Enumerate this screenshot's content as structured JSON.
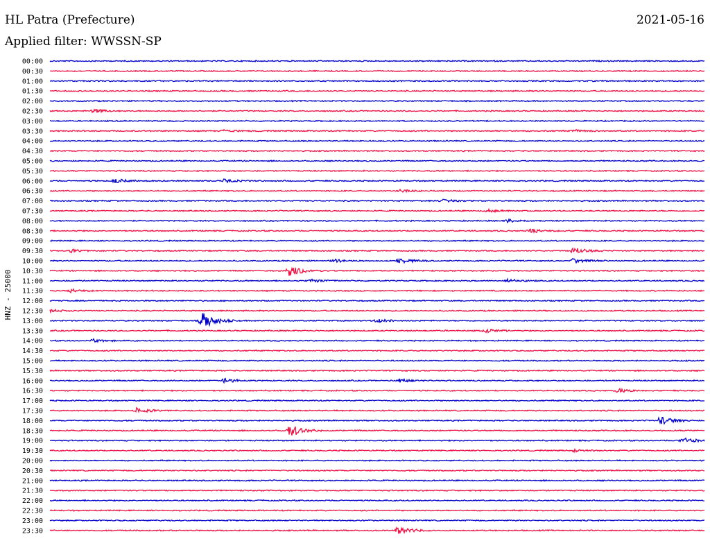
{
  "header": {
    "title": "HL Patra (Prefecture)",
    "date": "2021-05-16",
    "filter": "Applied filter: WWSSN-SP"
  },
  "chart_data": {
    "type": "line",
    "ylabel": "HNZ - 25000",
    "row_labels": [
      "00:00",
      "00:30",
      "01:00",
      "01:30",
      "02:00",
      "02:30",
      "03:00",
      "03:30",
      "04:00",
      "04:30",
      "05:00",
      "05:30",
      "06:00",
      "06:30",
      "07:00",
      "07:30",
      "08:00",
      "08:30",
      "09:00",
      "09:30",
      "10:00",
      "10:30",
      "11:00",
      "11:30",
      "12:00",
      "12:30",
      "13:00",
      "13:30",
      "14:00",
      "14:30",
      "15:00",
      "15:30",
      "16:00",
      "16:30",
      "17:00",
      "17:30",
      "18:00",
      "18:30",
      "19:00",
      "19:30",
      "20:00",
      "20:30",
      "21:00",
      "21:30",
      "22:00",
      "22:30",
      "23:00",
      "23:30"
    ],
    "colors": [
      "#0000cc",
      "#ee1144"
    ],
    "events": [
      {
        "row": "02:30",
        "minute": 2,
        "amplitude": 0.4
      },
      {
        "row": "03:30",
        "minute": 8,
        "amplitude": 0.25
      },
      {
        "row": "03:30",
        "minute": 24,
        "amplitude": 0.25
      },
      {
        "row": "06:00",
        "minute": 3,
        "amplitude": 0.5
      },
      {
        "row": "06:00",
        "minute": 8,
        "amplitude": 0.3
      },
      {
        "row": "06:30",
        "minute": 16,
        "amplitude": 0.3
      },
      {
        "row": "07:00",
        "minute": 18,
        "amplitude": 0.3
      },
      {
        "row": "07:30",
        "minute": 20,
        "amplitude": 0.3
      },
      {
        "row": "08:00",
        "minute": 21,
        "amplitude": 0.35
      },
      {
        "row": "08:30",
        "minute": 22,
        "amplitude": 0.4
      },
      {
        "row": "09:30",
        "minute": 1,
        "amplitude": 0.3
      },
      {
        "row": "09:30",
        "minute": 24,
        "amplitude": 0.7
      },
      {
        "row": "10:00",
        "minute": 13,
        "amplitude": 0.3
      },
      {
        "row": "10:00",
        "minute": 16,
        "amplitude": 0.6
      },
      {
        "row": "10:00",
        "minute": 24,
        "amplitude": 0.5
      },
      {
        "row": "10:30",
        "minute": 11,
        "amplitude": 1.6
      },
      {
        "row": "11:00",
        "minute": 12,
        "amplitude": 0.4
      },
      {
        "row": "11:00",
        "minute": 21,
        "amplitude": 0.4
      },
      {
        "row": "11:30",
        "minute": 1,
        "amplitude": 0.3
      },
      {
        "row": "12:30",
        "minute": 0,
        "amplitude": 0.3
      },
      {
        "row": "13:00",
        "minute": 7,
        "amplitude": 2.2
      },
      {
        "row": "13:00",
        "minute": 15,
        "amplitude": 0.4
      },
      {
        "row": "13:30",
        "minute": 20,
        "amplitude": 0.4
      },
      {
        "row": "14:00",
        "minute": 2,
        "amplitude": 0.3
      },
      {
        "row": "16:00",
        "minute": 8,
        "amplitude": 0.5
      },
      {
        "row": "16:00",
        "minute": 16,
        "amplitude": 0.4
      },
      {
        "row": "16:30",
        "minute": 26,
        "amplitude": 0.4
      },
      {
        "row": "17:30",
        "minute": 4,
        "amplitude": 0.6
      },
      {
        "row": "18:00",
        "minute": 28,
        "amplitude": 1.0
      },
      {
        "row": "18:30",
        "minute": 11,
        "amplitude": 1.4
      },
      {
        "row": "19:00",
        "minute": 29,
        "amplitude": 0.6
      },
      {
        "row": "19:30",
        "minute": 24,
        "amplitude": 0.3
      },
      {
        "row": "23:30",
        "minute": 16,
        "amplitude": 1.0
      }
    ]
  }
}
